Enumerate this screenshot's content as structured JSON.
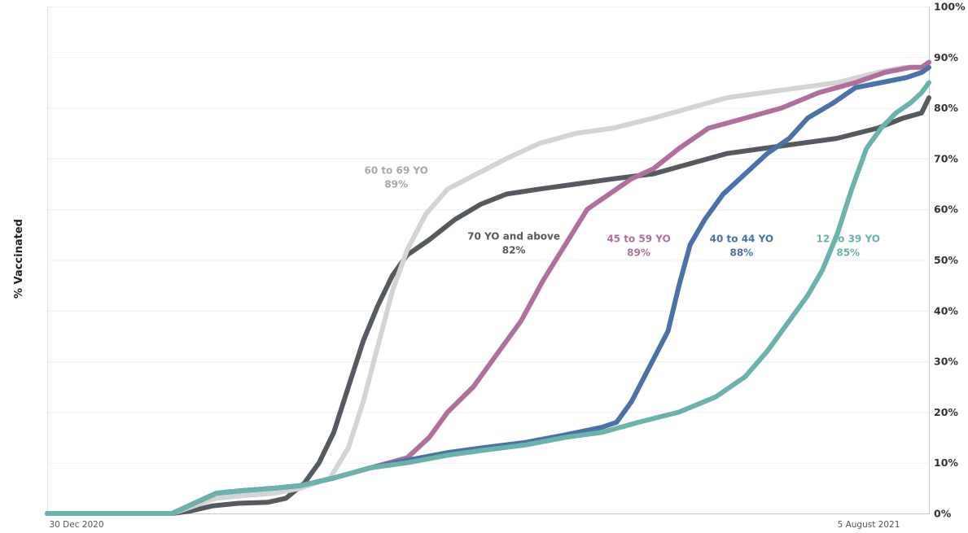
{
  "chart_data": {
    "type": "line",
    "title": "",
    "xlabel": "",
    "ylabel": "% Vaccinated",
    "x_ticks": [
      "30 Dec 2020",
      "5 August 2021"
    ],
    "y_ticks": [
      "0%",
      "10%",
      "20%",
      "30%",
      "40%",
      "50%",
      "60%",
      "70%",
      "80%",
      "90%",
      "100%"
    ],
    "ylim": [
      0,
      100
    ],
    "xlim": [
      "2020-12-22",
      "2021-08-19"
    ],
    "grid": "horizontal",
    "y_axis_side": "right",
    "series": [
      {
        "name": "70 YO and above",
        "value_label": "82%",
        "color": "#555a60",
        "points": [
          [
            "2020-12-22",
            0
          ],
          [
            "2021-01-25",
            0
          ],
          [
            "2021-01-30",
            0.5
          ],
          [
            "2021-02-05",
            1.5
          ],
          [
            "2021-02-12",
            2
          ],
          [
            "2021-02-20",
            2.2
          ],
          [
            "2021-02-25",
            3
          ],
          [
            "2021-03-02",
            6
          ],
          [
            "2021-03-06",
            10
          ],
          [
            "2021-03-10",
            16
          ],
          [
            "2021-03-14",
            25
          ],
          [
            "2021-03-18",
            34
          ],
          [
            "2021-03-22",
            41
          ],
          [
            "2021-03-26",
            47
          ],
          [
            "2021-03-30",
            51
          ],
          [
            "2021-04-05",
            54
          ],
          [
            "2021-04-12",
            58
          ],
          [
            "2021-04-19",
            61
          ],
          [
            "2021-04-26",
            63
          ],
          [
            "2021-05-05",
            64
          ],
          [
            "2021-05-15",
            65
          ],
          [
            "2021-05-25",
            66
          ],
          [
            "2021-06-05",
            67
          ],
          [
            "2021-06-15",
            69
          ],
          [
            "2021-06-25",
            71
          ],
          [
            "2021-07-05",
            72
          ],
          [
            "2021-07-15",
            73
          ],
          [
            "2021-07-25",
            74
          ],
          [
            "2021-08-05",
            76
          ],
          [
            "2021-08-12",
            78
          ],
          [
            "2021-08-17",
            79
          ],
          [
            "2021-08-19",
            82
          ]
        ]
      },
      {
        "name": "60 to 69 YO",
        "value_label": "89%",
        "color": "#d4d4d4",
        "points": [
          [
            "2020-12-22",
            0
          ],
          [
            "2021-01-25",
            0
          ],
          [
            "2021-01-31",
            1.5
          ],
          [
            "2021-02-06",
            3
          ],
          [
            "2021-02-13",
            3.5
          ],
          [
            "2021-02-22",
            4
          ],
          [
            "2021-03-01",
            5
          ],
          [
            "2021-03-09",
            7
          ],
          [
            "2021-03-14",
            13
          ],
          [
            "2021-03-18",
            22
          ],
          [
            "2021-03-22",
            33
          ],
          [
            "2021-03-26",
            44
          ],
          [
            "2021-03-30",
            52
          ],
          [
            "2021-04-04",
            59
          ],
          [
            "2021-04-10",
            64
          ],
          [
            "2021-04-18",
            67
          ],
          [
            "2021-04-26",
            70
          ],
          [
            "2021-05-05",
            73
          ],
          [
            "2021-05-15",
            75
          ],
          [
            "2021-05-25",
            76
          ],
          [
            "2021-06-05",
            78
          ],
          [
            "2021-06-15",
            80
          ],
          [
            "2021-06-25",
            82
          ],
          [
            "2021-07-05",
            83
          ],
          [
            "2021-07-15",
            84
          ],
          [
            "2021-07-25",
            85
          ],
          [
            "2021-08-05",
            87
          ],
          [
            "2021-08-12",
            88
          ],
          [
            "2021-08-17",
            88
          ],
          [
            "2021-08-19",
            89
          ]
        ]
      },
      {
        "name": "45 to 59 YO",
        "value_label": "89%",
        "color": "#b0709d",
        "points": [
          [
            "2020-12-22",
            0
          ],
          [
            "2021-01-25",
            0
          ],
          [
            "2021-01-31",
            2
          ],
          [
            "2021-02-06",
            4
          ],
          [
            "2021-02-13",
            4.5
          ],
          [
            "2021-02-22",
            5
          ],
          [
            "2021-03-01",
            5.5
          ],
          [
            "2021-03-10",
            7
          ],
          [
            "2021-03-20",
            9
          ],
          [
            "2021-03-30",
            11
          ],
          [
            "2021-04-05",
            15
          ],
          [
            "2021-04-10",
            20
          ],
          [
            "2021-04-17",
            25
          ],
          [
            "2021-04-24",
            32
          ],
          [
            "2021-04-30",
            38
          ],
          [
            "2021-05-06",
            46
          ],
          [
            "2021-05-12",
            53
          ],
          [
            "2021-05-18",
            60
          ],
          [
            "2021-05-24",
            63
          ],
          [
            "2021-05-30",
            66
          ],
          [
            "2021-06-05",
            68
          ],
          [
            "2021-06-12",
            72
          ],
          [
            "2021-06-20",
            76
          ],
          [
            "2021-06-30",
            78
          ],
          [
            "2021-07-10",
            80
          ],
          [
            "2021-07-20",
            83
          ],
          [
            "2021-07-30",
            85
          ],
          [
            "2021-08-07",
            87
          ],
          [
            "2021-08-14",
            88
          ],
          [
            "2021-08-17",
            88
          ],
          [
            "2021-08-19",
            89
          ]
        ]
      },
      {
        "name": "40 to 44 YO",
        "value_label": "88%",
        "color": "#4a72a6",
        "points": [
          [
            "2020-12-22",
            0
          ],
          [
            "2021-01-25",
            0
          ],
          [
            "2021-01-31",
            2
          ],
          [
            "2021-02-06",
            4
          ],
          [
            "2021-02-13",
            4.5
          ],
          [
            "2021-02-22",
            5
          ],
          [
            "2021-03-01",
            5.5
          ],
          [
            "2021-03-10",
            7
          ],
          [
            "2021-03-20",
            9
          ],
          [
            "2021-03-30",
            10.5
          ],
          [
            "2021-04-10",
            12
          ],
          [
            "2021-04-20",
            13
          ],
          [
            "2021-05-01",
            14
          ],
          [
            "2021-05-12",
            15.5
          ],
          [
            "2021-05-22",
            17
          ],
          [
            "2021-05-26",
            18
          ],
          [
            "2021-05-30",
            22
          ],
          [
            "2021-06-04",
            29
          ],
          [
            "2021-06-09",
            36
          ],
          [
            "2021-06-12",
            45
          ],
          [
            "2021-06-15",
            53
          ],
          [
            "2021-06-19",
            58
          ],
          [
            "2021-06-24",
            63
          ],
          [
            "2021-06-30",
            67
          ],
          [
            "2021-07-06",
            71
          ],
          [
            "2021-07-12",
            74
          ],
          [
            "2021-07-17",
            78
          ],
          [
            "2021-07-24",
            81
          ],
          [
            "2021-07-30",
            84
          ],
          [
            "2021-08-06",
            85
          ],
          [
            "2021-08-13",
            86
          ],
          [
            "2021-08-17",
            87
          ],
          [
            "2021-08-19",
            88
          ]
        ]
      },
      {
        "name": "12 to 39 YO",
        "value_label": "85%",
        "color": "#6ab2ab",
        "points": [
          [
            "2020-12-22",
            0
          ],
          [
            "2021-01-25",
            0
          ],
          [
            "2021-01-31",
            2
          ],
          [
            "2021-02-06",
            4
          ],
          [
            "2021-02-13",
            4.5
          ],
          [
            "2021-02-22",
            5
          ],
          [
            "2021-03-01",
            5.5
          ],
          [
            "2021-03-10",
            7
          ],
          [
            "2021-03-20",
            9
          ],
          [
            "2021-03-30",
            10
          ],
          [
            "2021-04-10",
            11.5
          ],
          [
            "2021-04-20",
            12.5
          ],
          [
            "2021-05-01",
            13.5
          ],
          [
            "2021-05-12",
            15
          ],
          [
            "2021-05-22",
            16
          ],
          [
            "2021-06-01",
            18
          ],
          [
            "2021-06-12",
            20
          ],
          [
            "2021-06-22",
            23
          ],
          [
            "2021-06-30",
            27
          ],
          [
            "2021-07-06",
            32
          ],
          [
            "2021-07-12",
            38
          ],
          [
            "2021-07-17",
            43
          ],
          [
            "2021-07-21",
            48
          ],
          [
            "2021-07-25",
            55
          ],
          [
            "2021-07-29",
            64
          ],
          [
            "2021-08-02",
            72
          ],
          [
            "2021-08-06",
            76
          ],
          [
            "2021-08-10",
            79
          ],
          [
            "2021-08-14",
            81
          ],
          [
            "2021-08-17",
            83
          ],
          [
            "2021-08-19",
            85
          ]
        ]
      }
    ],
    "annotations": [
      {
        "series": "60 to 69 YO",
        "name_text": "60 to 69 YO",
        "value_text": "89%",
        "color": "#a8a8a8",
        "at": [
          "2021-03-27",
          67
        ]
      },
      {
        "series": "70 YO and above",
        "name_text": "70 YO and above",
        "value_text": "82%",
        "color": "#555a60",
        "at": [
          "2021-04-28",
          54
        ]
      },
      {
        "series": "45 to 59 YO",
        "name_text": "45 to 59 YO",
        "value_text": "89%",
        "color": "#b0709d",
        "at": [
          "2021-06-01",
          53.5
        ]
      },
      {
        "series": "40 to 44 YO",
        "name_text": "40 to 44 YO",
        "value_text": "88%",
        "color": "#4a72a6",
        "at": [
          "2021-06-29",
          53.5
        ]
      },
      {
        "series": "12 to 39 YO",
        "name_text": "12 to 39 YO",
        "value_text": "85%",
        "color": "#6ab2ab",
        "at": [
          "2021-07-28",
          53.5
        ]
      }
    ]
  }
}
